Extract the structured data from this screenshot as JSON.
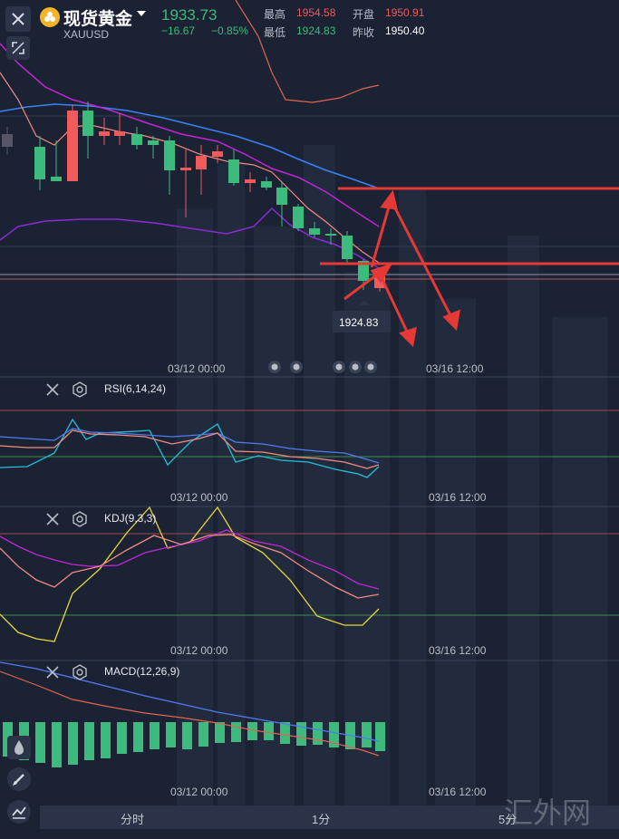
{
  "header": {
    "title": "现货黄金",
    "symbol": "XAUUSD",
    "price": "1933.73",
    "change": "−16.67",
    "change_pct": "−0.85%",
    "stats": {
      "high_label": "最高",
      "high_value": "1954.58",
      "open_label": "开盘",
      "open_value": "1950.91",
      "low_label": "最低",
      "low_value": "1924.83",
      "prev_label": "昨收",
      "prev_value": "1950.40"
    }
  },
  "main_chart": {
    "low_marker": "1924.83",
    "time_labels": [
      "03/12 00:00",
      "03/16 12:00"
    ]
  },
  "indicators": {
    "rsi": {
      "label": "RSI(6,14,24)",
      "time_labels": [
        "03/12 00:00",
        "03/16 12:00"
      ]
    },
    "kdj": {
      "label": "KDJ(9,3,3)",
      "time_labels": [
        "03/12 00:00",
        "03/16 12:00"
      ]
    },
    "macd": {
      "label": "MACD(12,26,9)",
      "time_labels": [
        "03/12 00:00",
        "03/16 12:00"
      ]
    }
  },
  "bottom_tabs": [
    "分时",
    "1分",
    "5分"
  ],
  "watermark": "汇外网",
  "colors": {
    "bg": "#1b2233",
    "up": "#f05a5a",
    "down": "#3dbb7c",
    "annotation": "#e53935",
    "ma_blue": "#3b82f6",
    "ma_magenta": "#c026d3",
    "ma_salmon": "#f28b82"
  },
  "icons": [
    "close-icon",
    "expand-icon",
    "gold-coin-icon",
    "dropdown-icon",
    "settings-icon",
    "pencil-icon",
    "line-tool-icon"
  ]
}
